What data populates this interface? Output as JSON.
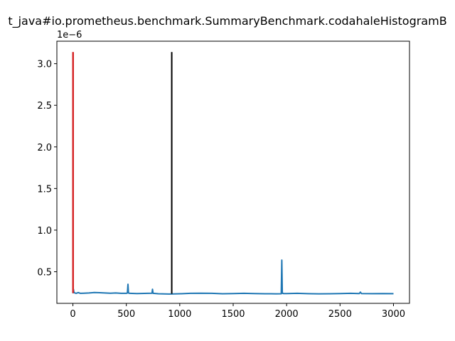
{
  "chart_data": {
    "type": "line",
    "title": "t_java#io.prometheus.benchmark.SummaryBenchmark.codahaleHistogramB",
    "xlabel": "",
    "ylabel": "",
    "y_offset_label": "1e−6",
    "xlim": [
      -150,
      3150
    ],
    "ylim": [
      1.2e-07,
      3.27e-06
    ],
    "x_ticks": [
      0,
      500,
      1000,
      1500,
      2000,
      2500,
      3000
    ],
    "x_tick_labels": [
      "0",
      "500",
      "1000",
      "1500",
      "2000",
      "2500",
      "3000"
    ],
    "y_ticks": [
      5e-07,
      1e-06,
      1.5e-06,
      2e-06,
      2.5e-06,
      3e-06
    ],
    "y_tick_labels": [
      "0.5",
      "1.0",
      "1.5",
      "2.0",
      "2.5",
      "3.0"
    ],
    "grid": false,
    "series": [
      {
        "color": "#1f77b4",
        "x": [
          0,
          5,
          10,
          20,
          30,
          50,
          70,
          100,
          150,
          200,
          250,
          300,
          350,
          400,
          450,
          500,
          510,
          515,
          520,
          530,
          600,
          700,
          740,
          745,
          750,
          800,
          900,
          1000,
          1100,
          1200,
          1300,
          1400,
          1500,
          1600,
          1700,
          1800,
          1900,
          1950,
          1955,
          1960,
          1965,
          1970,
          2000,
          2100,
          2200,
          2300,
          2400,
          2500,
          2600,
          2680,
          2690,
          2700,
          2800,
          2900,
          3000
        ],
        "y": [
          2.4e-07,
          2.9e-07,
          2.5e-07,
          2.45e-07,
          2.4e-07,
          2.5e-07,
          2.4e-07,
          2.42e-07,
          2.45e-07,
          2.5e-07,
          2.48e-07,
          2.45e-07,
          2.42e-07,
          2.45e-07,
          2.4e-07,
          2.4e-07,
          2.45e-07,
          3.5e-07,
          2.45e-07,
          2.4e-07,
          2.38e-07,
          2.4e-07,
          2.42e-07,
          2.9e-07,
          2.4e-07,
          2.35e-07,
          2.32e-07,
          2.35e-07,
          2.4e-07,
          2.42e-07,
          2.4e-07,
          2.35e-07,
          2.38e-07,
          2.4e-07,
          2.38e-07,
          2.35e-07,
          2.34e-07,
          2.35e-07,
          6.4e-07,
          2.4e-07,
          2.42e-07,
          2.38e-07,
          2.38e-07,
          2.4e-07,
          2.36e-07,
          2.34e-07,
          2.35e-07,
          2.38e-07,
          2.4e-07,
          2.38e-07,
          2.55e-07,
          2.38e-07,
          2.36e-07,
          2.38e-07,
          2.36e-07
        ]
      },
      {
        "color": "#d62728",
        "x": [
          0,
          0,
          3,
          3
        ],
        "y": [
          3.14e-06,
          2.5e-07,
          2.5e-07,
          3.14e-06
        ]
      }
    ],
    "vlines": [
      {
        "x": 925,
        "y0": 2.35e-07,
        "y1": 3.14e-06,
        "color": "#000000"
      }
    ]
  }
}
